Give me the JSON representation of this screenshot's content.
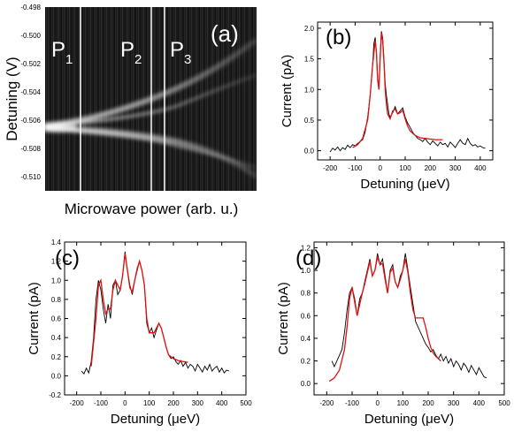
{
  "chart_data": [
    {
      "panel": "(a)",
      "type": "heatmap",
      "xlabel": "Microwave power (arb. u.)",
      "ylabel": "Detuning (V)",
      "ylim": [
        -0.511,
        -0.498
      ],
      "yticks": [
        "-0.498",
        "-0.500",
        "-0.502",
        "-0.504",
        "-0.506",
        "-0.508",
        "-0.510"
      ],
      "regions": [
        {
          "label": "P",
          "sub": "1"
        },
        {
          "label": "P",
          "sub": "2"
        },
        {
          "label": "P",
          "sub": "3"
        }
      ]
    },
    {
      "panel": "(b)",
      "type": "line",
      "xlabel": "Detuning (μeV)",
      "ylabel": "Current (pA)",
      "xlim": [
        -250,
        450
      ],
      "ylim": [
        -0.15,
        2.1
      ],
      "xticks": [
        -200,
        -100,
        0,
        100,
        200,
        300,
        400
      ],
      "yticks": [
        0.0,
        0.5,
        1.0,
        1.5,
        2.0
      ],
      "ytick_labels": [
        "0.0",
        "0.5",
        "1.0",
        "1.5",
        "2.0"
      ],
      "series": [
        {
          "color": "#000000",
          "x": [
            -200,
            -190,
            -180,
            -170,
            -160,
            -150,
            -140,
            -130,
            -120,
            -110,
            -100,
            -90,
            -80,
            -70,
            -60,
            -50,
            -40,
            -30,
            -25,
            -20,
            -15,
            -10,
            -5,
            0,
            5,
            10,
            15,
            20,
            25,
            30,
            35,
            40,
            50,
            60,
            70,
            80,
            90,
            100,
            110,
            120,
            130,
            140,
            150,
            160,
            170,
            180,
            190,
            200,
            210,
            220,
            230,
            240,
            250,
            260,
            270,
            280,
            290,
            300,
            310,
            320,
            330,
            340,
            350,
            360,
            370,
            380,
            390,
            400,
            410,
            420
          ],
          "y": [
            -0.02,
            0.04,
            0.01,
            0.06,
            0.0,
            0.05,
            0.02,
            0.09,
            0.05,
            0.1,
            0.08,
            0.12,
            0.15,
            0.18,
            0.3,
            0.55,
            0.9,
            1.4,
            1.75,
            1.85,
            1.6,
            1.2,
            1.0,
            1.55,
            1.95,
            1.85,
            1.5,
            1.1,
            0.9,
            0.75,
            0.6,
            0.55,
            0.62,
            0.72,
            0.6,
            0.65,
            0.7,
            0.55,
            0.45,
            0.38,
            0.3,
            0.25,
            0.2,
            0.18,
            0.15,
            0.2,
            0.14,
            0.1,
            0.16,
            0.12,
            0.08,
            0.14,
            0.1,
            0.12,
            0.06,
            0.14,
            0.1,
            0.05,
            0.12,
            0.18,
            0.12,
            0.1,
            0.2,
            0.12,
            0.08,
            0.1,
            0.06,
            0.08,
            0.05,
            0.04
          ]
        },
        {
          "color": "#e01010",
          "x": [
            -110,
            -90,
            -70,
            -50,
            -40,
            -30,
            -20,
            -15,
            -10,
            -5,
            0,
            5,
            10,
            15,
            20,
            25,
            30,
            40,
            50,
            60,
            70,
            80,
            90,
            100,
            110,
            120,
            140,
            160,
            180,
            200,
            220,
            240,
            250
          ],
          "y": [
            0.05,
            0.1,
            0.2,
            0.5,
            0.9,
            1.4,
            1.8,
            1.6,
            1.15,
            1.0,
            1.5,
            1.92,
            1.8,
            1.45,
            1.0,
            0.75,
            0.6,
            0.52,
            0.65,
            0.68,
            0.6,
            0.62,
            0.66,
            0.52,
            0.4,
            0.32,
            0.25,
            0.21,
            0.2,
            0.19,
            0.18,
            0.18,
            0.18
          ]
        }
      ]
    },
    {
      "panel": "(c)",
      "type": "line",
      "xlabel": "Detuning (μeV)",
      "ylabel": "Current (pA)",
      "xlim": [
        -250,
        500
      ],
      "ylim": [
        -0.2,
        1.4
      ],
      "xticks": [
        -200,
        -100,
        0,
        100,
        200,
        300,
        400,
        500
      ],
      "yticks": [
        -0.2,
        0.0,
        0.2,
        0.4,
        0.6,
        0.8,
        1.0,
        1.2,
        1.4
      ],
      "ytick_labels": [
        "-0.2",
        "0.0",
        "0.2",
        "0.4",
        "0.6",
        "0.8",
        "1.0",
        "1.2",
        "1.4"
      ],
      "series": [
        {
          "color": "#000000",
          "x": [
            -180,
            -170,
            -160,
            -150,
            -140,
            -130,
            -120,
            -110,
            -100,
            -90,
            -80,
            -70,
            -60,
            -50,
            -40,
            -30,
            -20,
            -10,
            0,
            10,
            20,
            30,
            40,
            50,
            60,
            70,
            80,
            90,
            100,
            110,
            120,
            130,
            140,
            150,
            160,
            170,
            180,
            190,
            200,
            210,
            220,
            230,
            240,
            250,
            260,
            270,
            280,
            290,
            300,
            310,
            320,
            330,
            340,
            350,
            360,
            370,
            380,
            390,
            400,
            410,
            420,
            430
          ],
          "y": [
            0.05,
            0.02,
            0.08,
            0.03,
            0.15,
            0.4,
            0.8,
            1.0,
            0.9,
            0.7,
            0.55,
            0.75,
            0.6,
            0.95,
            1.0,
            0.85,
            0.9,
            1.05,
            1.3,
            1.1,
            0.95,
            0.85,
            1.0,
            1.1,
            1.2,
            1.1,
            0.95,
            0.55,
            0.45,
            0.5,
            0.4,
            0.48,
            0.55,
            0.5,
            0.4,
            0.3,
            0.22,
            0.18,
            0.2,
            0.15,
            0.12,
            0.16,
            0.1,
            0.14,
            0.08,
            0.12,
            0.1,
            0.05,
            0.12,
            0.08,
            0.04,
            0.1,
            0.06,
            0.12,
            0.05,
            0.08,
            0.1,
            0.04,
            0.08,
            0.03,
            0.06,
            0.05
          ]
        },
        {
          "color": "#e01010",
          "x": [
            -140,
            -120,
            -110,
            -100,
            -90,
            -80,
            -70,
            -60,
            -50,
            -40,
            -30,
            -20,
            -10,
            0,
            10,
            20,
            30,
            40,
            50,
            60,
            70,
            80,
            90,
            100,
            110,
            120,
            130,
            140,
            150,
            160,
            170,
            180,
            200,
            220,
            240,
            260
          ],
          "y": [
            0.1,
            0.6,
            0.95,
            1.0,
            0.8,
            0.65,
            0.7,
            0.7,
            0.9,
            1.0,
            0.95,
            0.9,
            1.05,
            1.28,
            1.1,
            0.92,
            0.88,
            1.0,
            1.12,
            1.2,
            1.1,
            0.95,
            0.6,
            0.45,
            0.45,
            0.45,
            0.5,
            0.55,
            0.5,
            0.4,
            0.3,
            0.22,
            0.18,
            0.16,
            0.15,
            0.14
          ]
        }
      ]
    },
    {
      "panel": "(d)",
      "type": "line",
      "xlabel": "Detuning (μeV)",
      "ylabel": "Current (pA)",
      "xlim": [
        -250,
        500
      ],
      "ylim": [
        -0.1,
        1.25
      ],
      "xticks": [
        -200,
        -100,
        0,
        100,
        200,
        300,
        400,
        500
      ],
      "yticks": [
        0.0,
        0.2,
        0.4,
        0.6,
        0.8,
        1.0,
        1.2
      ],
      "ytick_labels": [
        "0.0",
        "0.2",
        "0.4",
        "0.6",
        "0.8",
        "1.0",
        "1.2"
      ],
      "series": [
        {
          "color": "#000000",
          "x": [
            -180,
            -170,
            -160,
            -150,
            -140,
            -130,
            -120,
            -110,
            -100,
            -90,
            -80,
            -70,
            -60,
            -50,
            -40,
            -30,
            -20,
            -10,
            0,
            10,
            20,
            30,
            40,
            50,
            60,
            70,
            80,
            90,
            100,
            110,
            120,
            130,
            140,
            150,
            160,
            170,
            180,
            190,
            200,
            210,
            220,
            230,
            240,
            250,
            260,
            270,
            280,
            290,
            300,
            310,
            320,
            330,
            340,
            350,
            360,
            370,
            380,
            390,
            400,
            410,
            420,
            430
          ],
          "y": [
            0.2,
            0.15,
            0.2,
            0.25,
            0.3,
            0.45,
            0.65,
            0.8,
            0.85,
            0.75,
            0.6,
            0.75,
            0.8,
            0.9,
            1.0,
            1.1,
            0.95,
            1.0,
            1.15,
            1.05,
            1.1,
            0.95,
            0.8,
            1.0,
            1.05,
            0.9,
            0.85,
            0.95,
            1.0,
            1.15,
            1.0,
            0.85,
            0.7,
            0.55,
            0.5,
            0.45,
            0.4,
            0.35,
            0.32,
            0.28,
            0.3,
            0.25,
            0.22,
            0.26,
            0.2,
            0.24,
            0.18,
            0.22,
            0.15,
            0.2,
            0.17,
            0.12,
            0.18,
            0.15,
            0.1,
            0.16,
            0.12,
            0.08,
            0.14,
            0.1,
            0.06,
            0.05
          ]
        },
        {
          "color": "#e01010",
          "x": [
            -190,
            -170,
            -150,
            -130,
            -120,
            -110,
            -100,
            -90,
            -80,
            -70,
            -60,
            -50,
            -40,
            -30,
            -20,
            -10,
            0,
            10,
            20,
            30,
            40,
            50,
            60,
            70,
            80,
            90,
            100,
            110,
            120,
            130,
            140,
            150,
            160,
            170,
            180,
            190,
            200,
            210,
            220,
            230,
            240,
            250
          ],
          "y": [
            0.02,
            0.05,
            0.12,
            0.3,
            0.5,
            0.75,
            0.85,
            0.72,
            0.6,
            0.7,
            0.8,
            0.88,
            0.98,
            1.08,
            0.95,
            1.0,
            1.12,
            1.05,
            1.06,
            0.92,
            0.8,
            0.98,
            1.02,
            0.9,
            0.85,
            0.92,
            1.0,
            1.1,
            0.98,
            0.8,
            0.65,
            0.58,
            0.58,
            0.58,
            0.58,
            0.5,
            0.4,
            0.32,
            0.27,
            0.24,
            0.22,
            0.2
          ]
        }
      ]
    }
  ]
}
